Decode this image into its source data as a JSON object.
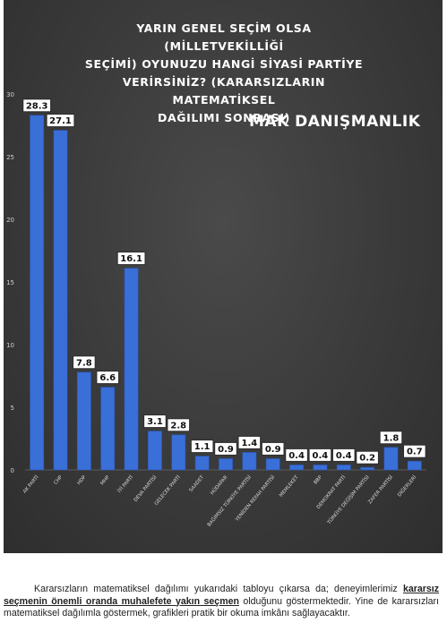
{
  "chart_data": {
    "type": "bar",
    "title": "YARIN GENEL SEÇİM OLSA (MİLLETVEKİLLİĞİ SEÇİMİ) OYUNUZU HANGİ SİYASİ PARTİYE VERİRSİNİZ? (KARARSIZLARIN MATEMATİKSEL DAĞILIMI SONRASI)",
    "title_lines": [
      "YARIN GENEL SEÇİM OLSA (MİLLETVEKİLLİĞİ",
      "SEÇİMİ) OYUNUZU HANGİ SİYASİ PARTİYE",
      "VERİRSİNİZ? (KARARSIZLARIN MATEMATİKSEL",
      "DAĞILIMI SONRASI)"
    ],
    "watermark": "MAK DANIŞMANLIK",
    "categories": [
      "AK PARTİ",
      "CHP",
      "HDP",
      "MHP",
      "İYİ PARTİ",
      "DEVA PARTİSİ",
      "GELECEK PARTİ",
      "SAADET",
      "HÜDAPAR",
      "BAĞIMSIZ TÜRKİYE PARTİSİ",
      "YENİDEN REFAH PARTİSİ",
      "MEMLEKET",
      "BBP",
      "DEMOKRAT PARTİ",
      "TÜRKİYE DEĞİŞİM PARTİSİ",
      "ZAFER PARTİSİ",
      "DİĞERLERİ"
    ],
    "values": [
      28.3,
      27.1,
      7.8,
      6.6,
      16.1,
      3.1,
      2.8,
      1.1,
      0.9,
      1.4,
      0.9,
      0.4,
      0.4,
      0.4,
      0.2,
      1.8,
      0.7
    ],
    "value_labels": [
      "28.3",
      "27.1",
      "7.8",
      "6.6",
      "16.1",
      "3.1",
      "2.8",
      "1.1",
      "0.9",
      "1.4",
      "0.9",
      "0.4",
      "0.4",
      "0.4",
      "0.2",
      "1.8",
      "0.7"
    ],
    "y_ticks": [
      "0",
      "5",
      "10",
      "15",
      "20",
      "25",
      "30"
    ],
    "ylim": [
      0,
      30
    ],
    "grid": false,
    "bar_color": "#3a6fd8",
    "background_color": "#3c3c3c"
  },
  "paragraph": {
    "part1": "Kararsızların matematiksel dağılımı yukarıdaki tabloyu çıkarsa da; deneyimlerimiz",
    "emphasis": "kararsız seçmenin önemli oranda muhalefete yakın seçmen",
    "part2": "olduğunu göstermektedir. Yine de kararsızları matematiksel dağılımla göstermek, grafikleri pratik bir okuma imkânı sağlayacaktır."
  }
}
